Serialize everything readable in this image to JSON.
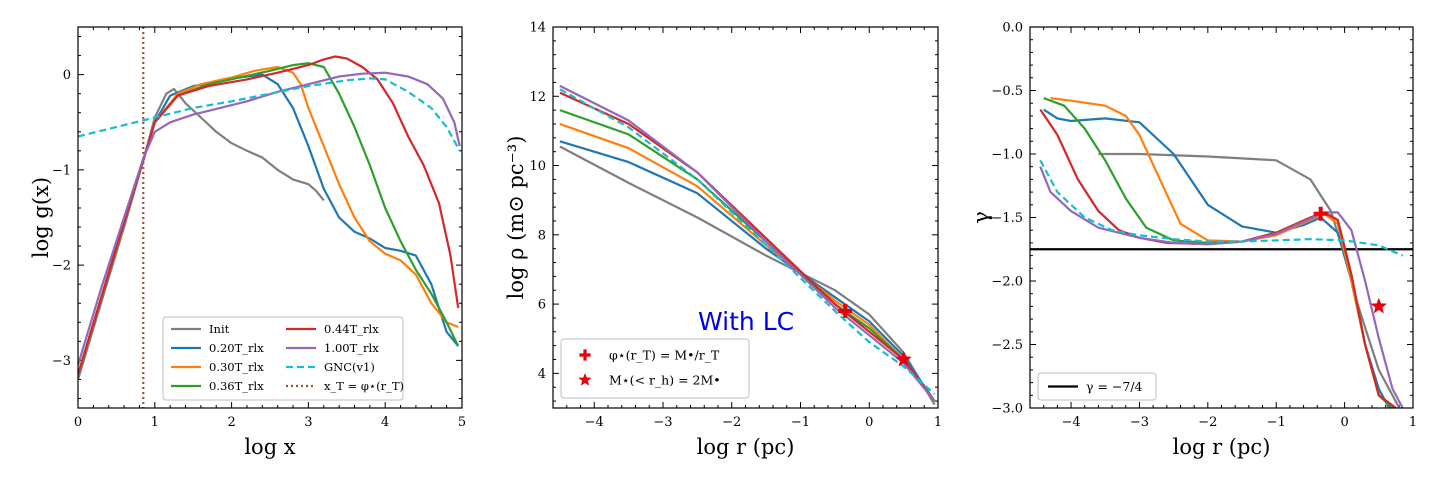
{
  "chart_data": [
    {
      "type": "line",
      "xlabel": "log x",
      "ylabel": "log g(x)",
      "xlim": [
        0,
        5
      ],
      "ylim": [
        -3.5,
        0.5
      ],
      "xticks": [
        0,
        1,
        2,
        3,
        4,
        5
      ],
      "yticks": [
        -3,
        -2,
        -1,
        0
      ],
      "xtick_labels": [
        "0",
        "1",
        "2",
        "3",
        "4",
        "5"
      ],
      "ytick_labels": [
        "−3",
        "−2",
        "−1",
        "0"
      ],
      "vline": {
        "x": 0.85,
        "label": "x_T = φ⋆(r_T)",
        "color": "#a0522d"
      },
      "legend": {
        "placement": "lower-right",
        "columns": 2,
        "entries": [
          "Init",
          "0.20T_rlx",
          "0.30T_rlx",
          "0.36T_rlx",
          "0.44T_rlx",
          "1.00T_rlx",
          "GNC(v1)",
          "x_T = φ⋆(r_T)"
        ]
      },
      "series": [
        {
          "name": "Init",
          "color": "#7f7f7f",
          "style": "solid",
          "x": [
            0,
            0.3,
            0.6,
            0.85,
            1.0,
            1.15,
            1.25,
            1.4,
            1.6,
            1.8,
            2.0,
            2.2,
            2.4,
            2.6,
            2.8,
            3.0,
            3.1,
            3.2
          ],
          "y": [
            -3.2,
            -2.4,
            -1.6,
            -0.9,
            -0.45,
            -0.2,
            -0.15,
            -0.3,
            -0.45,
            -0.6,
            -0.72,
            -0.8,
            -0.87,
            -1.0,
            -1.1,
            -1.15,
            -1.22,
            -1.32
          ]
        },
        {
          "name": "0.20T_rlx",
          "color": "#1f77b4",
          "style": "solid",
          "x": [
            0,
            0.3,
            0.6,
            0.85,
            1.0,
            1.2,
            1.5,
            1.8,
            2.1,
            2.4,
            2.6,
            2.8,
            3.0,
            3.2,
            3.4,
            3.6,
            3.8,
            4.0,
            4.2,
            4.4,
            4.6,
            4.8,
            4.95
          ],
          "y": [
            -3.15,
            -2.35,
            -1.55,
            -0.9,
            -0.5,
            -0.22,
            -0.12,
            -0.08,
            -0.03,
            0.0,
            -0.1,
            -0.35,
            -0.75,
            -1.2,
            -1.5,
            -1.65,
            -1.72,
            -1.82,
            -1.85,
            -1.9,
            -2.2,
            -2.7,
            -2.85
          ]
        },
        {
          "name": "0.30T_rlx",
          "color": "#ff7f0e",
          "style": "solid",
          "x": [
            0,
            0.3,
            0.6,
            0.85,
            1.0,
            1.3,
            1.6,
            2.0,
            2.3,
            2.6,
            2.8,
            2.9,
            3.0,
            3.2,
            3.4,
            3.6,
            3.8,
            4.0,
            4.2,
            4.4,
            4.6,
            4.8,
            4.95
          ],
          "y": [
            -3.15,
            -2.35,
            -1.55,
            -0.9,
            -0.5,
            -0.2,
            -0.1,
            -0.03,
            0.04,
            0.08,
            0.02,
            -0.1,
            -0.35,
            -0.75,
            -1.15,
            -1.5,
            -1.75,
            -1.88,
            -1.95,
            -2.1,
            -2.4,
            -2.6,
            -2.65
          ]
        },
        {
          "name": "0.36T_rlx",
          "color": "#2ca02c",
          "style": "solid",
          "x": [
            0,
            0.3,
            0.6,
            0.85,
            1.0,
            1.3,
            1.7,
            2.1,
            2.5,
            2.8,
            3.0,
            3.2,
            3.4,
            3.6,
            3.8,
            4.0,
            4.2,
            4.4,
            4.6,
            4.8,
            4.95
          ],
          "y": [
            -3.15,
            -2.35,
            -1.55,
            -0.9,
            -0.5,
            -0.22,
            -0.1,
            -0.03,
            0.04,
            0.1,
            0.12,
            0.08,
            -0.2,
            -0.55,
            -0.95,
            -1.4,
            -1.75,
            -2.05,
            -2.3,
            -2.6,
            -2.85
          ]
        },
        {
          "name": "0.44T_rlx",
          "color": "#d62728",
          "style": "solid",
          "x": [
            0,
            0.3,
            0.6,
            0.85,
            1.0,
            1.3,
            1.7,
            2.2,
            2.6,
            3.0,
            3.2,
            3.35,
            3.5,
            3.7,
            3.9,
            4.1,
            4.3,
            4.5,
            4.7,
            4.85,
            4.95
          ],
          "y": [
            -3.15,
            -2.35,
            -1.55,
            -0.9,
            -0.5,
            -0.22,
            -0.12,
            -0.05,
            0.02,
            0.1,
            0.16,
            0.19,
            0.17,
            0.08,
            -0.05,
            -0.3,
            -0.65,
            -0.95,
            -1.35,
            -1.9,
            -2.45
          ]
        },
        {
          "name": "1.00T_rlx",
          "color": "#9467bd",
          "style": "solid",
          "x": [
            0,
            0.3,
            0.6,
            0.85,
            1.0,
            1.2,
            1.5,
            1.8,
            2.2,
            2.6,
            3.0,
            3.4,
            3.7,
            4.0,
            4.3,
            4.55,
            4.75,
            4.9,
            4.97
          ],
          "y": [
            -3.05,
            -2.25,
            -1.5,
            -0.88,
            -0.6,
            -0.5,
            -0.42,
            -0.36,
            -0.28,
            -0.18,
            -0.1,
            -0.02,
            0.01,
            0.02,
            -0.02,
            -0.1,
            -0.25,
            -0.5,
            -0.75
          ]
        },
        {
          "name": "GNC(v1)",
          "color": "#17becf",
          "style": "dashed",
          "x": [
            0,
            0.5,
            1.0,
            1.5,
            2.0,
            2.5,
            3.0,
            3.5,
            3.8,
            4.0,
            4.3,
            4.6,
            4.8,
            4.97
          ],
          "y": [
            -0.65,
            -0.55,
            -0.45,
            -0.35,
            -0.28,
            -0.2,
            -0.12,
            -0.06,
            -0.04,
            -0.05,
            -0.18,
            -0.35,
            -0.55,
            -0.8
          ]
        }
      ]
    },
    {
      "type": "line",
      "xlabel": "log r (pc)",
      "ylabel": "log ρ (m⊙ pc⁻³)",
      "xlim": [
        -4.6,
        1.0
      ],
      "ylim": [
        3.0,
        14.0
      ],
      "xticks": [
        -4,
        -3,
        -2,
        -1,
        0,
        1
      ],
      "yticks": [
        4,
        6,
        8,
        10,
        12,
        14
      ],
      "xtick_labels": [
        "−4",
        "−3",
        "−2",
        "−1",
        "0",
        "1"
      ],
      "ytick_labels": [
        "4",
        "6",
        "8",
        "10",
        "12",
        "14"
      ],
      "annotation": "With LC",
      "legend": {
        "placement": "lower-left",
        "entries": [
          "φ⋆(r_T) = M•/r_T",
          "M⋆(< r_h) = 2M•"
        ]
      },
      "markers": [
        {
          "label": "φ⋆(r_T) = M•/r_T",
          "symbol": "plus",
          "color": "#e8000b",
          "x": -0.35,
          "y": 5.8
        },
        {
          "label": "M⋆(< r_h) = 2M•",
          "symbol": "star",
          "color": "#e8000b",
          "x": 0.5,
          "y": 4.4
        }
      ],
      "series": [
        {
          "name": "Init",
          "color": "#7f7f7f",
          "style": "solid",
          "x": [
            -4.5,
            -3.5,
            -2.5,
            -1.5,
            -0.5,
            0.0,
            0.5,
            0.95
          ],
          "y": [
            10.55,
            9.5,
            8.5,
            7.4,
            6.4,
            5.7,
            4.6,
            3.1
          ]
        },
        {
          "name": "0.20T_rlx",
          "color": "#1f77b4",
          "style": "solid",
          "x": [
            -4.5,
            -3.5,
            -2.5,
            -1.5,
            -0.5,
            0.0,
            0.5,
            0.95
          ],
          "y": [
            10.7,
            10.1,
            9.2,
            7.6,
            6.2,
            5.5,
            4.5,
            3.2
          ]
        },
        {
          "name": "0.30T_rlx",
          "color": "#ff7f0e",
          "style": "solid",
          "x": [
            -4.5,
            -3.5,
            -2.5,
            -1.5,
            -0.5,
            0.0,
            0.5,
            0.95
          ],
          "y": [
            11.2,
            10.5,
            9.4,
            7.7,
            6.1,
            5.4,
            4.4,
            3.2
          ]
        },
        {
          "name": "0.36T_rlx",
          "color": "#2ca02c",
          "style": "solid",
          "x": [
            -4.5,
            -3.5,
            -2.5,
            -1.5,
            -0.5,
            0.0,
            0.5,
            0.95
          ],
          "y": [
            11.6,
            10.9,
            9.6,
            7.8,
            6.0,
            5.3,
            4.4,
            3.2
          ]
        },
        {
          "name": "0.44T_rlx",
          "color": "#d62728",
          "style": "solid",
          "x": [
            -4.5,
            -3.5,
            -2.5,
            -1.5,
            -0.5,
            0.0,
            0.5,
            0.95
          ],
          "y": [
            12.1,
            11.2,
            9.8,
            7.9,
            6.0,
            5.2,
            4.4,
            3.2
          ]
        },
        {
          "name": "1.00T_rlx",
          "color": "#9467bd",
          "style": "solid",
          "x": [
            -4.5,
            -3.5,
            -2.5,
            -1.5,
            -0.5,
            0.0,
            0.5,
            0.95
          ],
          "y": [
            12.3,
            11.3,
            9.8,
            7.8,
            5.9,
            5.1,
            4.3,
            3.2
          ]
        },
        {
          "name": "GNC(v1)",
          "color": "#17becf",
          "style": "dashed",
          "x": [
            -4.5,
            -3.5,
            -2.5,
            -1.5,
            -0.5,
            0.0,
            0.5,
            0.95
          ],
          "y": [
            12.2,
            11.1,
            9.6,
            7.7,
            5.8,
            4.9,
            4.2,
            3.4
          ]
        }
      ]
    },
    {
      "type": "line",
      "xlabel": "log r (pc)",
      "ylabel": "γ",
      "xlim": [
        -4.6,
        1.0
      ],
      "ylim": [
        -3.0,
        0.0
      ],
      "xticks": [
        -4,
        -3,
        -2,
        -1,
        0,
        1
      ],
      "yticks": [
        -3.0,
        -2.5,
        -2.0,
        -1.5,
        -1.0,
        -0.5,
        0.0
      ],
      "xtick_labels": [
        "−4",
        "−3",
        "−2",
        "−1",
        "0",
        "1"
      ],
      "ytick_labels": [
        "−3.0",
        "−2.5",
        "−2.0",
        "−1.5",
        "−1.0",
        "−0.5",
        "0.0"
      ],
      "hline": {
        "y": -1.75,
        "label": "γ = −7/4",
        "color": "#000000"
      },
      "legend": {
        "placement": "lower-left",
        "entries": [
          "γ = −7/4"
        ]
      },
      "markers": [
        {
          "symbol": "plus",
          "color": "#e8000b",
          "x": -0.35,
          "y": -1.47
        },
        {
          "symbol": "star",
          "color": "#e8000b",
          "x": 0.5,
          "y": -2.2
        }
      ],
      "series": [
        {
          "name": "Init",
          "color": "#7f7f7f",
          "style": "solid",
          "x": [
            -3.6,
            -3.0,
            -2.0,
            -1.0,
            -0.5,
            -0.2,
            0.0,
            0.2,
            0.5,
            0.8
          ],
          "y": [
            -1.0,
            -1.0,
            -1.02,
            -1.05,
            -1.2,
            -1.45,
            -1.8,
            -2.2,
            -2.7,
            -3.0
          ]
        },
        {
          "name": "0.20T_rlx",
          "color": "#1f77b4",
          "style": "solid",
          "x": [
            -4.4,
            -4.2,
            -4.0,
            -3.5,
            -3.0,
            -2.5,
            -2.0,
            -1.5,
            -1.0,
            -0.6,
            -0.35,
            -0.1,
            0.1,
            0.3,
            0.5,
            0.65
          ],
          "y": [
            -0.65,
            -0.72,
            -0.74,
            -0.72,
            -0.75,
            -1.0,
            -1.4,
            -1.57,
            -1.62,
            -1.56,
            -1.5,
            -1.62,
            -2.0,
            -2.5,
            -2.85,
            -3.0
          ]
        },
        {
          "name": "0.30T_rlx",
          "color": "#ff7f0e",
          "style": "solid",
          "x": [
            -4.3,
            -4.0,
            -3.5,
            -3.2,
            -3.0,
            -2.7,
            -2.4,
            -2.0,
            -1.5,
            -1.0,
            -0.5,
            -0.3,
            -0.1,
            0.1,
            0.3,
            0.5,
            0.7
          ],
          "y": [
            -0.56,
            -0.58,
            -0.62,
            -0.7,
            -0.85,
            -1.2,
            -1.55,
            -1.68,
            -1.69,
            -1.64,
            -1.52,
            -1.47,
            -1.55,
            -2.0,
            -2.5,
            -2.9,
            -3.0
          ]
        },
        {
          "name": "0.36T_rlx",
          "color": "#2ca02c",
          "style": "solid",
          "x": [
            -4.4,
            -4.1,
            -3.8,
            -3.5,
            -3.2,
            -2.9,
            -2.5,
            -2.0,
            -1.5,
            -1.0,
            -0.5,
            -0.3,
            -0.1,
            0.1,
            0.3,
            0.5,
            0.7
          ],
          "y": [
            -0.56,
            -0.62,
            -0.8,
            -1.05,
            -1.35,
            -1.58,
            -1.68,
            -1.7,
            -1.69,
            -1.62,
            -1.5,
            -1.46,
            -1.52,
            -1.95,
            -2.5,
            -2.9,
            -3.0
          ]
        },
        {
          "name": "0.44T_rlx",
          "color": "#d62728",
          "style": "solid",
          "x": [
            -4.45,
            -4.2,
            -3.9,
            -3.6,
            -3.3,
            -3.0,
            -2.6,
            -2.0,
            -1.5,
            -1.0,
            -0.5,
            -0.3,
            -0.1,
            0.1,
            0.3,
            0.5,
            0.75
          ],
          "y": [
            -0.65,
            -0.85,
            -1.2,
            -1.45,
            -1.6,
            -1.66,
            -1.7,
            -1.71,
            -1.69,
            -1.62,
            -1.5,
            -1.46,
            -1.52,
            -1.95,
            -2.5,
            -2.9,
            -3.0
          ]
        },
        {
          "name": "1.00T_rlx",
          "color": "#9467bd",
          "style": "solid",
          "x": [
            -4.45,
            -4.3,
            -4.0,
            -3.6,
            -3.0,
            -2.5,
            -2.0,
            -1.5,
            -1.0,
            -0.5,
            -0.3,
            -0.1,
            0.1,
            0.3,
            0.5,
            0.7,
            0.85
          ],
          "y": [
            -1.1,
            -1.3,
            -1.45,
            -1.58,
            -1.66,
            -1.7,
            -1.71,
            -1.69,
            -1.63,
            -1.51,
            -1.46,
            -1.46,
            -1.6,
            -2.0,
            -2.45,
            -2.85,
            -3.0
          ]
        },
        {
          "name": "GNC(v1)",
          "color": "#17becf",
          "style": "dashed",
          "x": [
            -4.45,
            -4.2,
            -3.8,
            -3.4,
            -3.0,
            -2.5,
            -2.0,
            -1.5,
            -1.0,
            -0.5,
            0.0,
            0.5,
            0.85
          ],
          "y": [
            -1.05,
            -1.3,
            -1.5,
            -1.6,
            -1.64,
            -1.67,
            -1.69,
            -1.69,
            -1.68,
            -1.67,
            -1.68,
            -1.72,
            -1.8
          ]
        }
      ]
    }
  ]
}
